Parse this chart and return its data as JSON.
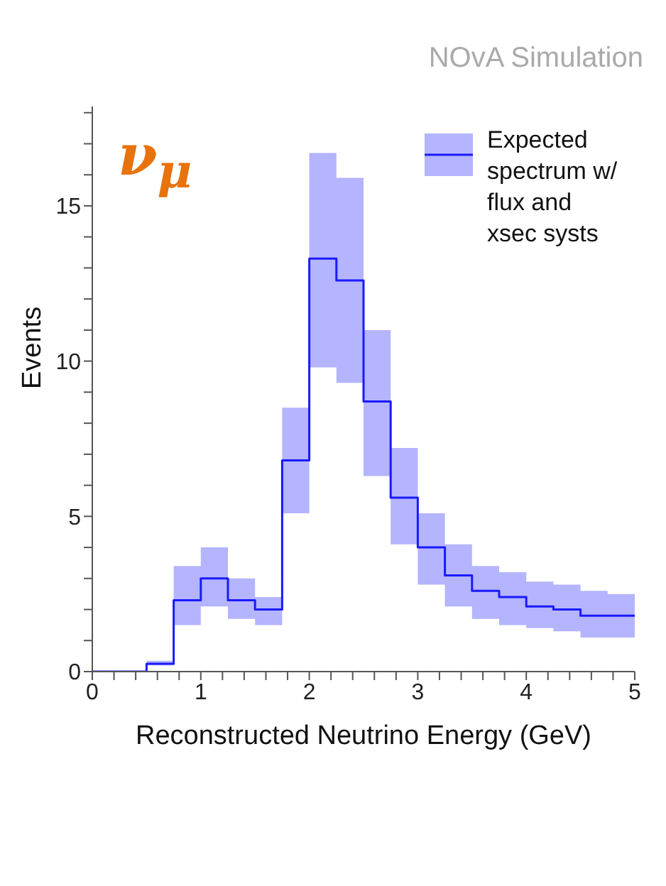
{
  "chart_data": {
    "type": "step",
    "xlabel": "Reconstructed Neutrino Energy (GeV)",
    "ylabel": "Events",
    "annotations": [
      "ν$_{μ}$",
      "NOvA Simulation"
    ],
    "x": [
      0,
      0.25,
      0.5,
      0.75,
      1,
      1.25,
      1.5,
      1.75,
      2,
      2.25,
      2.5,
      2.75,
      3,
      3.25,
      3.5,
      3.75,
      4,
      4.25,
      4.5,
      4.75,
      5
    ],
    "series": [
      {
        "name": "Expected spectrum w/ flux and xsec systs",
        "color": "#1a1aff",
        "values": [
          0,
          0,
          0.25,
          2.3,
          3.0,
          2.3,
          2.0,
          6.8,
          13.3,
          12.6,
          8.7,
          5.6,
          4.0,
          3.1,
          2.6,
          2.4,
          2.1,
          2.0,
          1.8,
          1.8,
          1.8
        ],
        "lower": [
          0,
          0,
          0.2,
          1.5,
          2.1,
          1.7,
          1.5,
          5.1,
          9.8,
          9.3,
          6.3,
          4.1,
          2.8,
          2.1,
          1.7,
          1.5,
          1.4,
          1.3,
          1.1,
          1.1,
          1.1
        ],
        "upper": [
          0,
          0,
          0.35,
          3.4,
          4.0,
          3.0,
          2.4,
          8.5,
          16.7,
          15.9,
          11.0,
          7.2,
          5.1,
          4.1,
          3.4,
          3.2,
          2.9,
          2.8,
          2.6,
          2.5,
          2.5
        ]
      }
    ],
    "xlim": [
      0,
      5
    ],
    "xticks": [
      0,
      {
        "value": 0.2,
        "label": null
      },
      {
        "value": 0.4,
        "label": null
      },
      {
        "value": 0.6,
        "label": null
      },
      {
        "value": 0.8,
        "label": null
      },
      1,
      {
        "value": 1.2,
        "label": null
      },
      {
        "value": 1.4,
        "label": null
      },
      {
        "value": 1.6,
        "label": null
      },
      {
        "value": 1.8,
        "label": null
      },
      2,
      {
        "value": 2.2,
        "label": null
      },
      {
        "value": 2.4,
        "label": null
      },
      {
        "value": 2.6,
        "label": null
      },
      {
        "value": 2.8,
        "label": null
      },
      3,
      {
        "value": 3.2,
        "label": null
      },
      {
        "value": 3.4,
        "label": null
      },
      {
        "value": 3.6,
        "label": null
      },
      {
        "value": 3.8,
        "label": null
      },
      4,
      {
        "value": 4.2,
        "label": null
      },
      {
        "value": 4.4,
        "label": null
      },
      {
        "value": 4.6,
        "label": null
      },
      {
        "value": 4.8,
        "label": null
      },
      5
    ],
    "ylim": [
      0,
      18.2
    ],
    "yticks": [
      0,
      {
        "value": 1,
        "label": null
      },
      {
        "value": 2,
        "label": null
      },
      {
        "value": 3,
        "label": null
      },
      {
        "value": 4,
        "label": null
      },
      5,
      {
        "value": 6,
        "label": null
      },
      {
        "value": 7,
        "label": null
      },
      {
        "value": 8,
        "label": null
      },
      {
        "value": 9,
        "label": null
      },
      10,
      {
        "value": 11,
        "label": null
      },
      {
        "value": 12,
        "label": null
      },
      {
        "value": 13,
        "label": null
      },
      {
        "value": 14,
        "label": null
      },
      15,
      {
        "value": 16,
        "label": null
      },
      {
        "value": 17,
        "label": null
      },
      {
        "value": 18,
        "label": null
      }
    ],
    "legend": "top right",
    "grid": false
  }
}
